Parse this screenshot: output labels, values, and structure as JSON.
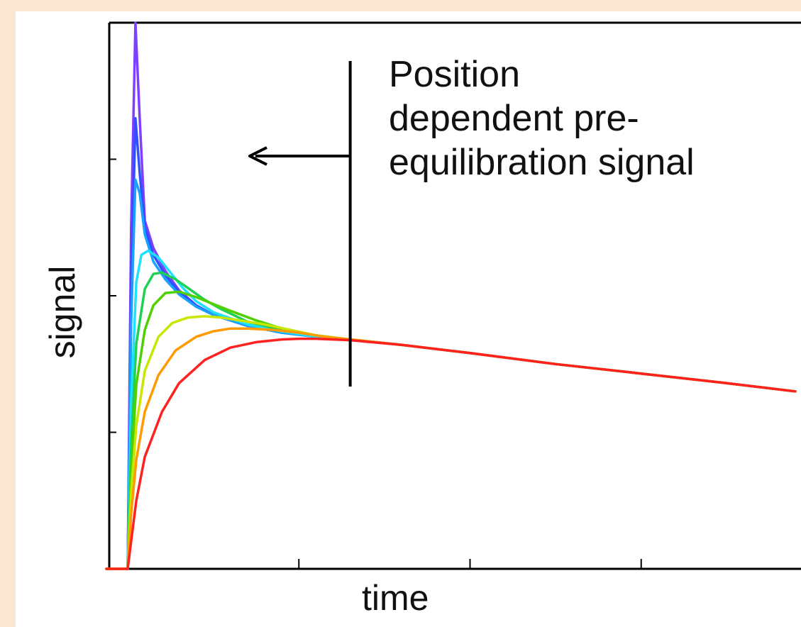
{
  "chart_data": {
    "type": "line",
    "title": "",
    "xlabel": "time",
    "ylabel": "signal",
    "xlim": [
      0,
      4
    ],
    "ylim": [
      0,
      4
    ],
    "x_ticks": [
      0,
      1,
      2,
      3,
      4
    ],
    "y_ticks": [
      0,
      1,
      2,
      3,
      4
    ],
    "tick_labels_shown": false,
    "grid": false,
    "legend": "none",
    "annotation": {
      "text": "Position\ndependent pre-\nequilibration signal",
      "divider_x": 1.3,
      "arrow": "left"
    },
    "series": [
      {
        "color": "#7f3fff",
        "x": [
          0.0,
          0.02,
          0.045,
          0.07,
          0.1,
          0.15,
          0.22,
          0.3,
          0.4,
          0.5,
          0.7,
          0.9,
          1.1,
          1.3,
          1.6,
          2.0,
          2.5,
          3.0,
          3.5,
          3.9
        ],
        "y": [
          0.0,
          2.5,
          4.0,
          3.3,
          2.55,
          2.35,
          2.18,
          2.04,
          1.93,
          1.86,
          1.78,
          1.73,
          1.7,
          1.68,
          1.64,
          1.58,
          1.5,
          1.43,
          1.36,
          1.3
        ]
      },
      {
        "color": "#3050ff",
        "x": [
          0.0,
          0.02,
          0.045,
          0.07,
          0.1,
          0.15,
          0.22,
          0.3,
          0.4,
          0.5,
          0.7,
          0.9,
          1.1,
          1.3,
          1.6,
          2.0,
          2.5,
          3.0,
          3.5,
          3.9
        ],
        "y": [
          0.0,
          2.0,
          3.3,
          2.9,
          2.5,
          2.3,
          2.15,
          2.03,
          1.93,
          1.86,
          1.78,
          1.73,
          1.7,
          1.68,
          1.64,
          1.58,
          1.5,
          1.43,
          1.36,
          1.3
        ]
      },
      {
        "color": "#1aa0ff",
        "x": [
          0.0,
          0.02,
          0.045,
          0.07,
          0.1,
          0.15,
          0.22,
          0.3,
          0.4,
          0.5,
          0.7,
          0.9,
          1.1,
          1.3,
          1.6,
          2.0,
          2.5,
          3.0,
          3.5,
          3.9
        ],
        "y": [
          0.0,
          1.8,
          2.85,
          2.75,
          2.45,
          2.25,
          2.12,
          2.01,
          1.92,
          1.86,
          1.78,
          1.73,
          1.7,
          1.68,
          1.64,
          1.58,
          1.5,
          1.43,
          1.36,
          1.3
        ]
      },
      {
        "color": "#1ee0ff",
        "x": [
          0.0,
          0.02,
          0.05,
          0.08,
          0.12,
          0.18,
          0.25,
          0.32,
          0.4,
          0.5,
          0.7,
          0.9,
          1.1,
          1.3,
          1.6,
          2.0,
          2.5,
          3.0,
          3.5,
          3.9
        ],
        "y": [
          0.0,
          1.2,
          2.1,
          2.3,
          2.33,
          2.28,
          2.17,
          2.06,
          1.96,
          1.88,
          1.79,
          1.74,
          1.7,
          1.68,
          1.64,
          1.58,
          1.5,
          1.43,
          1.36,
          1.3
        ]
      },
      {
        "color": "#20d050",
        "x": [
          0.0,
          0.02,
          0.05,
          0.1,
          0.15,
          0.2,
          0.28,
          0.36,
          0.45,
          0.55,
          0.7,
          0.9,
          1.1,
          1.3,
          1.6,
          2.0,
          2.5,
          3.0,
          3.5,
          3.9
        ],
        "y": [
          0.0,
          0.9,
          1.65,
          2.05,
          2.16,
          2.17,
          2.12,
          2.05,
          1.97,
          1.9,
          1.81,
          1.75,
          1.71,
          1.68,
          1.64,
          1.58,
          1.5,
          1.43,
          1.36,
          1.3
        ]
      },
      {
        "color": "#50d000",
        "x": [
          0.0,
          0.02,
          0.05,
          0.1,
          0.15,
          0.22,
          0.3,
          0.4,
          0.5,
          0.6,
          0.75,
          0.9,
          1.1,
          1.3,
          1.6,
          2.0,
          2.5,
          3.0,
          3.5,
          3.9
        ],
        "y": [
          0.0,
          0.7,
          1.35,
          1.75,
          1.93,
          2.02,
          2.03,
          1.99,
          1.94,
          1.89,
          1.82,
          1.76,
          1.71,
          1.68,
          1.64,
          1.58,
          1.5,
          1.43,
          1.36,
          1.3
        ]
      },
      {
        "color": "#c8e600",
        "x": [
          0.0,
          0.02,
          0.05,
          0.1,
          0.18,
          0.26,
          0.35,
          0.45,
          0.55,
          0.65,
          0.8,
          0.95,
          1.1,
          1.3,
          1.6,
          2.0,
          2.5,
          3.0,
          3.5,
          3.9
        ],
        "y": [
          0.0,
          0.55,
          1.05,
          1.45,
          1.7,
          1.8,
          1.84,
          1.85,
          1.84,
          1.82,
          1.79,
          1.75,
          1.71,
          1.68,
          1.64,
          1.58,
          1.5,
          1.43,
          1.36,
          1.3
        ]
      },
      {
        "color": "#ff9a00",
        "x": [
          0.0,
          0.02,
          0.05,
          0.1,
          0.18,
          0.28,
          0.4,
          0.5,
          0.6,
          0.7,
          0.85,
          1.0,
          1.15,
          1.3,
          1.6,
          2.0,
          2.5,
          3.0,
          3.5,
          3.9
        ],
        "y": [
          0.0,
          0.4,
          0.8,
          1.15,
          1.42,
          1.6,
          1.7,
          1.74,
          1.76,
          1.76,
          1.75,
          1.73,
          1.7,
          1.68,
          1.64,
          1.58,
          1.5,
          1.43,
          1.36,
          1.3
        ]
      },
      {
        "color": "#ff2020",
        "x": [
          0.0,
          0.02,
          0.05,
          0.1,
          0.2,
          0.3,
          0.45,
          0.6,
          0.75,
          0.9,
          1.0,
          1.1,
          1.2,
          1.3,
          1.6,
          2.0,
          2.5,
          3.0,
          3.5,
          3.9
        ],
        "y": [
          0.0,
          0.2,
          0.5,
          0.82,
          1.15,
          1.36,
          1.53,
          1.62,
          1.66,
          1.68,
          1.685,
          1.685,
          1.68,
          1.675,
          1.64,
          1.58,
          1.5,
          1.43,
          1.36,
          1.3
        ]
      }
    ]
  }
}
